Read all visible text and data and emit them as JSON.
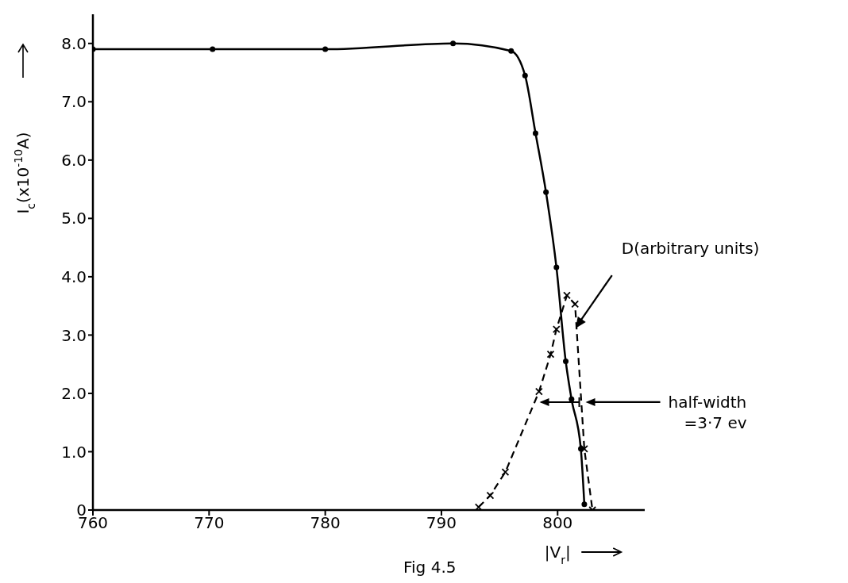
{
  "chart_data": {
    "type": "line",
    "xlabel": "|V$_{r}$|",
    "ylabel": "I$_{c}$(x10$^{-10}$A)",
    "xlim": [
      760,
      807.5
    ],
    "xticks": [
      760,
      770,
      780,
      790,
      800
    ],
    "ylim": [
      0,
      8.5
    ],
    "yticks": [
      {
        "value": 0,
        "label": "0"
      },
      {
        "value": 1,
        "label": "1.0"
      },
      {
        "value": 2,
        "label": "2.0"
      },
      {
        "value": 3,
        "label": "3.0"
      },
      {
        "value": 4,
        "label": "4.0"
      },
      {
        "value": 5,
        "label": "5.0"
      },
      {
        "value": 6,
        "label": "6.0"
      },
      {
        "value": 7,
        "label": "7.0"
      },
      {
        "value": 8,
        "label": "8.0"
      }
    ],
    "series": [
      {
        "color": "#000000",
        "marker": "circle",
        "line_style": "solid",
        "x": [
          760,
          770.3,
          780,
          791,
          796,
          797.2,
          798.1,
          799,
          799.9,
          800.7,
          801.2,
          802,
          802.3
        ],
        "values": [
          7.9,
          7.9,
          7.9,
          8.0,
          7.87,
          7.45,
          6.46,
          5.45,
          4.16,
          2.55,
          1.9,
          1.05,
          0.1
        ]
      },
      {
        "color": "#000000",
        "marker": "cross",
        "line_style": "dashed",
        "x": [
          793.2,
          794.2,
          795.5,
          798.4,
          799.4,
          799.9,
          800.8,
          801.5,
          802.3,
          803
        ],
        "values": [
          0.05,
          0.25,
          0.65,
          2.03,
          2.67,
          3.1,
          3.68,
          3.53,
          1.05,
          0
        ]
      }
    ],
    "annotations": [
      {
        "text": "D(arbitrary units)",
        "x": 801.4,
        "y": 3.1
      },
      "half-width\n=3·7 ev",
      "Fig 4.5"
    ]
  }
}
